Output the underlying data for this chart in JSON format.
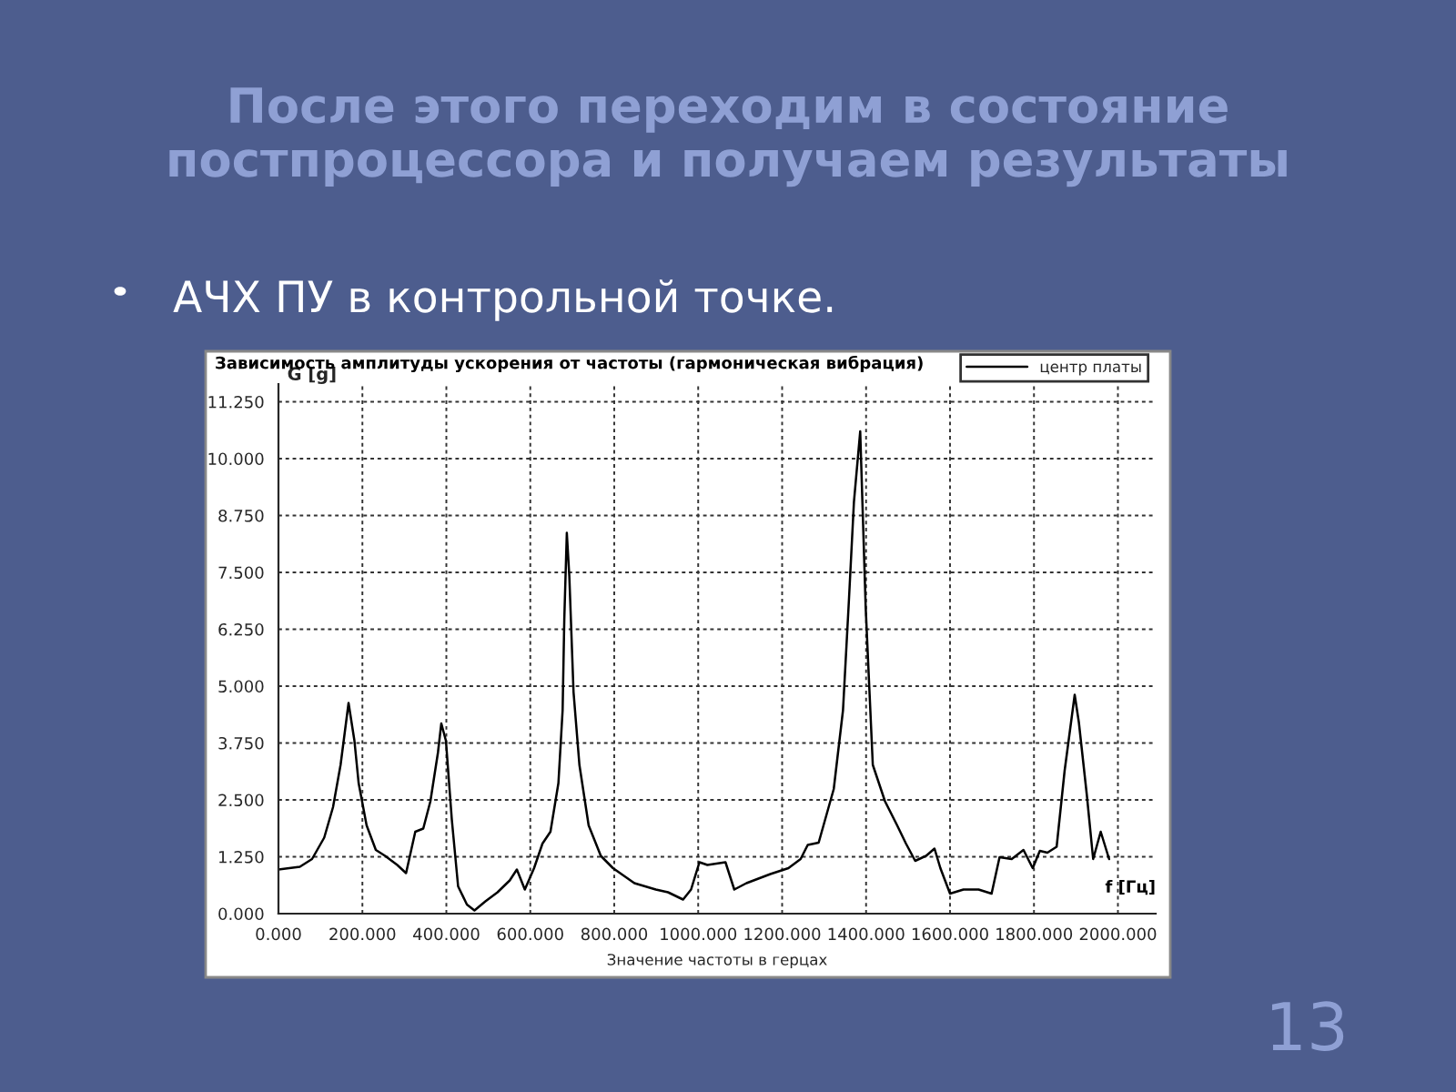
{
  "chart_data": {
    "type": "line",
    "title": "После этого переходим в состояние постпроцессора и получаем результаты",
    "subtitle": "АЧХ ПУ в контрольной точке.",
    "xlabel": "Значение частоты в герцах",
    "ylabel": "G [g]",
    "annotations": [
      "Зависимость амплитуды ускорения от частоты (гармоническая вибрация)",
      "f [Гц]",
      "13"
    ],
    "series": [
      {
        "name": "центр платы",
        "color": "#000000",
        "x": [
          0,
          51,
          80,
          109,
          130,
          148,
          167,
          181,
          191,
          210,
          232,
          254,
          283,
          304,
          326,
          345,
          362,
          380,
          388,
          399,
          413,
          428,
          449,
          467,
          493,
          522,
          551,
          568,
          587,
          609,
          629,
          648,
          667,
          677,
          681,
          687,
          693,
          703,
          717,
          739,
          768,
          797,
          848,
          899,
          928,
          964,
          983,
          1003,
          1022,
          1065,
          1086,
          1115,
          1172,
          1215,
          1244,
          1261,
          1287,
          1323,
          1345,
          1359,
          1371,
          1386,
          1399,
          1416,
          1445,
          1474,
          1495,
          1517,
          1543,
          1563,
          1577,
          1600,
          1632,
          1668,
          1699,
          1718,
          1747,
          1775,
          1797,
          1814,
          1832,
          1854,
          1873,
          1897,
          1907,
          1926,
          1941,
          1959,
          1979
        ],
        "values": [
          0.97,
          1.03,
          1.2,
          1.67,
          2.34,
          3.27,
          4.63,
          3.8,
          2.87,
          1.94,
          1.4,
          1.27,
          1.07,
          0.89,
          1.8,
          1.87,
          2.47,
          3.54,
          4.18,
          3.8,
          2.07,
          0.6,
          0.2,
          0.07,
          0.27,
          0.47,
          0.73,
          0.97,
          0.53,
          1.0,
          1.54,
          1.8,
          2.87,
          4.47,
          6.47,
          8.37,
          7.41,
          4.87,
          3.27,
          1.94,
          1.27,
          1.0,
          0.67,
          0.53,
          0.47,
          0.31,
          0.53,
          1.13,
          1.07,
          1.13,
          0.53,
          0.67,
          0.87,
          1.0,
          1.2,
          1.51,
          1.56,
          2.74,
          4.47,
          6.87,
          9.04,
          10.6,
          6.74,
          3.27,
          2.47,
          1.94,
          1.54,
          1.16,
          1.27,
          1.43,
          1.0,
          0.44,
          0.53,
          0.53,
          0.44,
          1.24,
          1.2,
          1.4,
          1.0,
          1.38,
          1.34,
          1.47,
          3.14,
          4.81,
          4.2,
          2.6,
          1.2,
          1.8,
          1.2
        ]
      }
    ],
    "xlim": [
      0,
      2090
    ],
    "ylim": [
      0,
      11.64
    ],
    "xticks": [
      {
        "value": 0,
        "label": "0.000"
      },
      {
        "value": 200,
        "label": "200.000"
      },
      {
        "value": 400,
        "label": "400.000"
      },
      {
        "value": 600,
        "label": "600.000"
      },
      {
        "value": 800,
        "label": "800.000"
      },
      {
        "value": 1000,
        "label": "1000.000"
      },
      {
        "value": 1200,
        "label": "1200.000"
      },
      {
        "value": 1400,
        "label": "1400.000"
      },
      {
        "value": 1600,
        "label": "1600.000"
      },
      {
        "value": 1800,
        "label": "1800.000"
      },
      {
        "value": 2000,
        "label": "2000.000"
      }
    ],
    "yticks": [
      {
        "value": 0,
        "label": "0.000"
      },
      {
        "value": 1.25,
        "label": "1.250"
      },
      {
        "value": 2.5,
        "label": "2.500"
      },
      {
        "value": 3.75,
        "label": "3.750"
      },
      {
        "value": 5,
        "label": "5.000"
      },
      {
        "value": 6.25,
        "label": "6.250"
      },
      {
        "value": 7.5,
        "label": "7.500"
      },
      {
        "value": 8.75,
        "label": "8.750"
      },
      {
        "value": 10,
        "label": "10.000"
      },
      {
        "value": 11.25,
        "label": "11.250"
      }
    ],
    "grid": true,
    "legend": "top right",
    "line_style": "solid",
    "marker": "none"
  }
}
